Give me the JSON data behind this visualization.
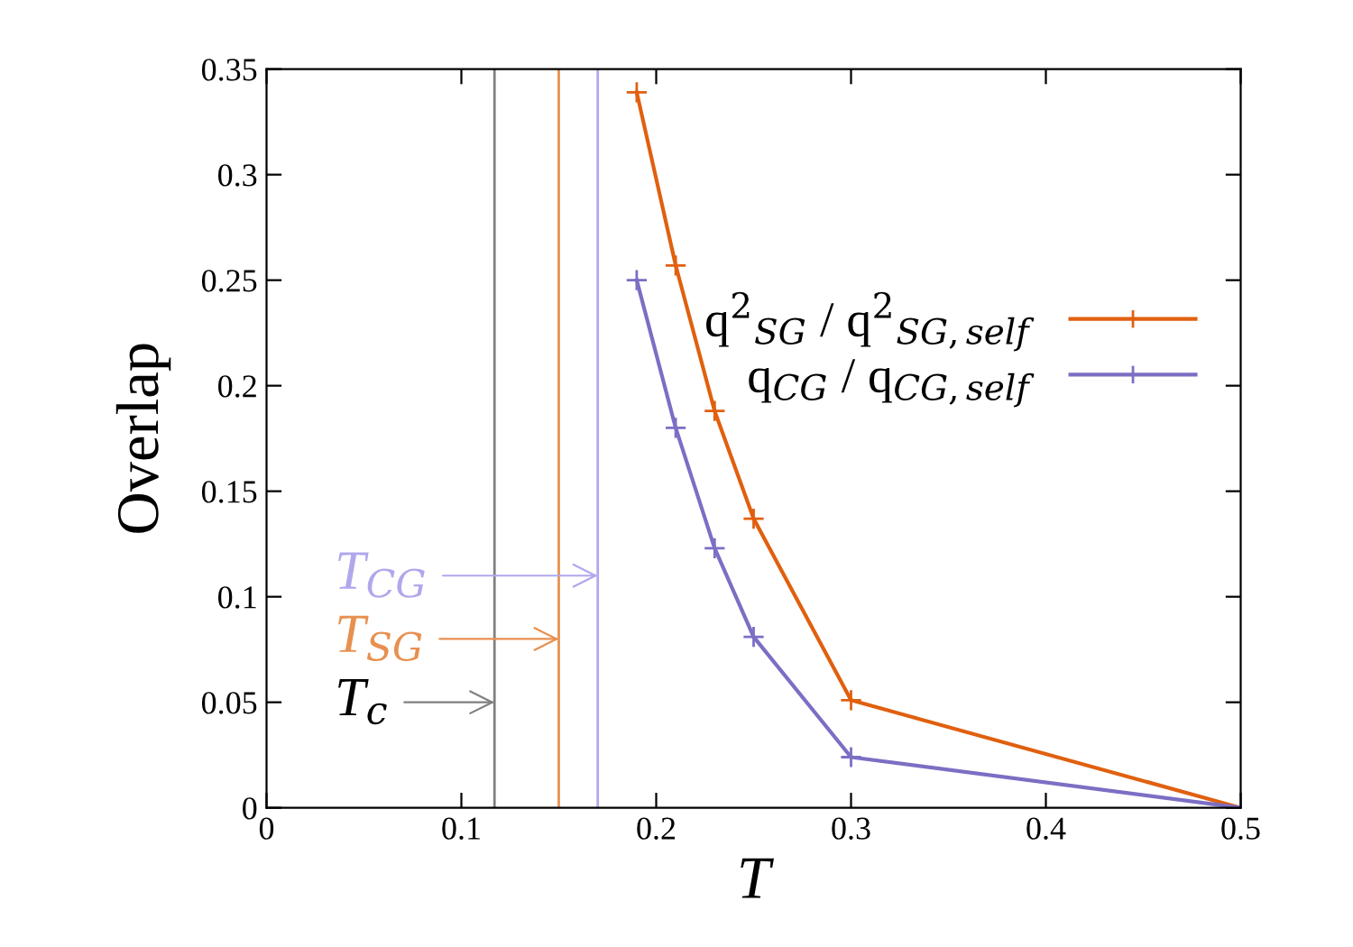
{
  "chart_data": {
    "type": "line",
    "xlabel": "T",
    "ylabel": "Overlap",
    "x": [
      0.19,
      0.21,
      0.23,
      0.25,
      0.3,
      0.5
    ],
    "series": [
      {
        "name": "q$^{2}$$_{SG}$ / q$^{2}$$_{SG,self}$",
        "color": "#e0600f",
        "values": [
          0.339,
          0.257,
          0.188,
          0.137,
          0.051,
          0.0
        ]
      },
      {
        "name": "q$_{CG}$ / q$_{CG,self}$",
        "color": "#7b6fc4",
        "values": [
          0.25,
          0.18,
          0.123,
          0.081,
          0.024,
          0.0
        ]
      }
    ],
    "marker": "cross",
    "line_style": "solid",
    "legend": "right",
    "grid": false,
    "xlim": [
      0,
      0.5
    ],
    "xticks": [
      0,
      0.1,
      0.2,
      0.3,
      0.4,
      0.5
    ],
    "ylim": [
      0,
      0.35
    ],
    "yticks": [
      0,
      0.05,
      0.1,
      0.15,
      0.2,
      0.25,
      0.3,
      0.35
    ],
    "ref_lines": [
      {
        "axis": "x",
        "value": 0.117,
        "color": "#808080"
      },
      {
        "axis": "x",
        "value": 0.15,
        "color": "#e8904f"
      },
      {
        "axis": "x",
        "value": 0.17,
        "color": "#b0a8ec"
      }
    ],
    "annotations": [
      {
        "text": "T$_{CG}$",
        "x": 0.17,
        "y": 0.11
      },
      {
        "text": "T$_{SG}$",
        "x": 0.15,
        "y": 0.08
      },
      {
        "text": "T$_{c}$",
        "x": 0.117,
        "y": 0.05
      }
    ]
  }
}
